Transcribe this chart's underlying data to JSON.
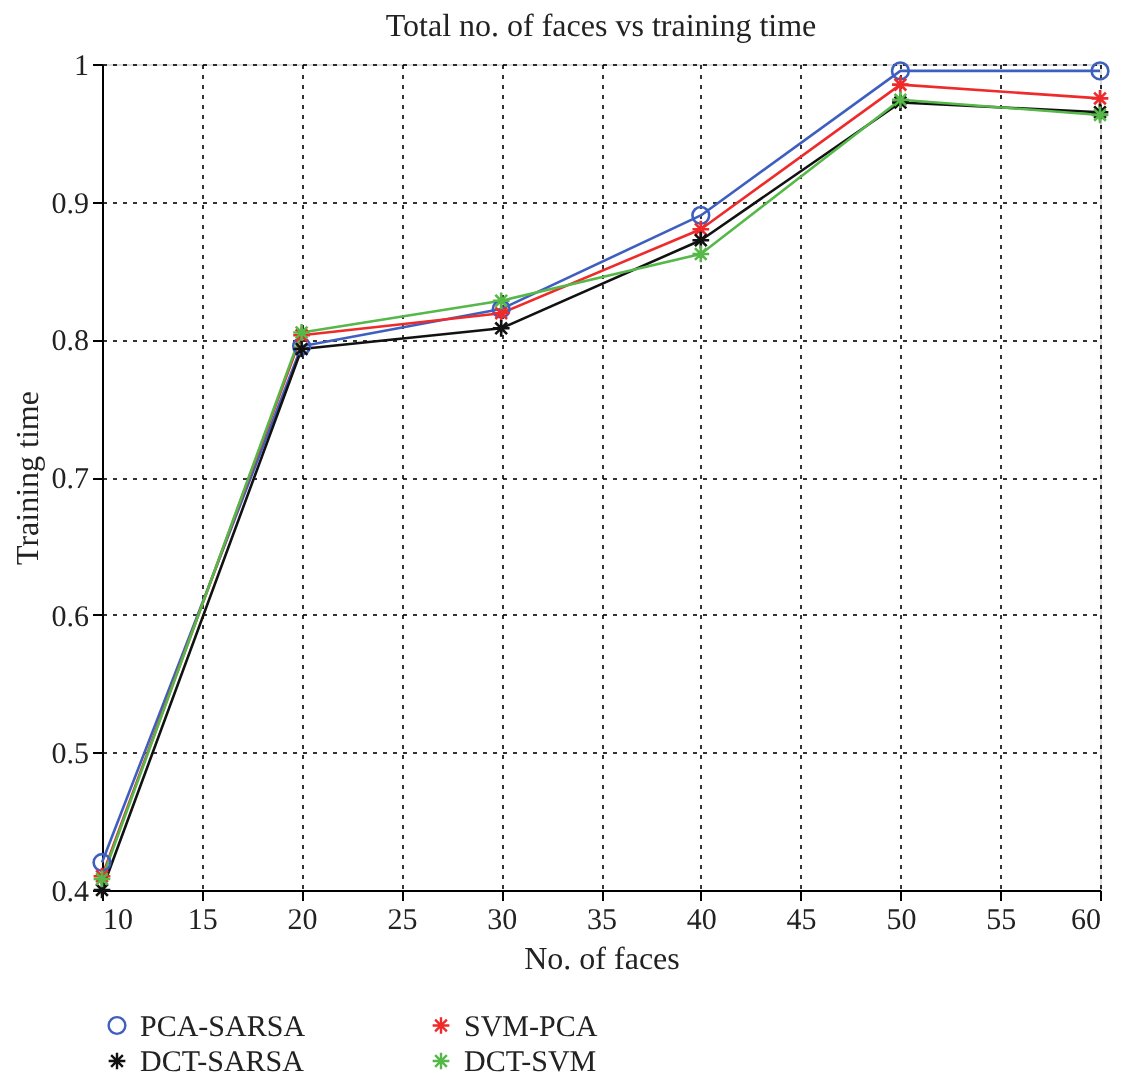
{
  "chart_data": {
    "type": "line",
    "title": "Total no. of faces vs training time",
    "xlabel": "No. of faces",
    "ylabel": "Training time",
    "x": [
      10,
      20,
      30,
      40,
      50,
      60
    ],
    "xlim": [
      10,
      60
    ],
    "xticks": [
      10,
      15,
      20,
      25,
      30,
      35,
      40,
      45,
      50,
      55,
      60
    ],
    "ylim": [
      0.4,
      1
    ],
    "yticks": [
      0.4,
      0.5,
      0.6,
      0.7,
      0.8,
      0.9,
      1
    ],
    "grid": true,
    "legend": "bottom",
    "line_style": "solid",
    "series": [
      {
        "name": "PCA-SARSA",
        "color": "#3f5fbf",
        "marker": "circle",
        "values": [
          0.42,
          0.795,
          0.822,
          0.89,
          0.995,
          0.995
        ]
      },
      {
        "name": "SVM-PCA",
        "color": "#ee2a2a",
        "marker": "cross",
        "values": [
          0.41,
          0.803,
          0.819,
          0.88,
          0.985,
          0.975
        ]
      },
      {
        "name": "DCT-SARSA",
        "color": "#111111",
        "marker": "cross",
        "values": [
          0.4,
          0.793,
          0.808,
          0.872,
          0.972,
          0.965
        ]
      },
      {
        "name": "DCT-SVM",
        "color": "#55b848",
        "marker": "cross",
        "values": [
          0.408,
          0.805,
          0.828,
          0.862,
          0.974,
          0.963
        ]
      }
    ]
  }
}
